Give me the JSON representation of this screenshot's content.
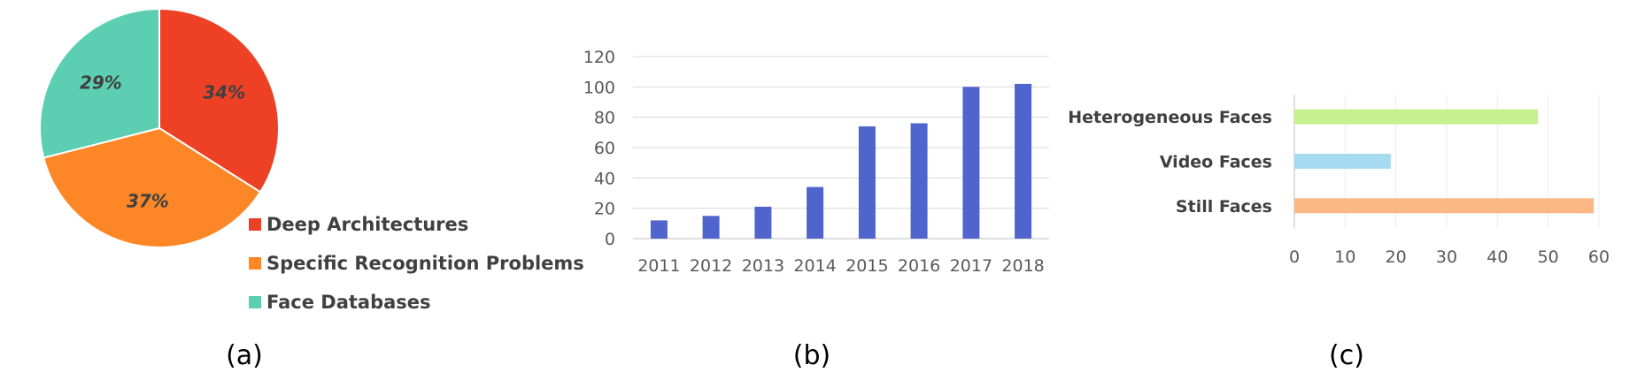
{
  "chart_data": [
    {
      "type": "pie",
      "panel_label": "(a)",
      "slices": [
        {
          "label": "Deep Architectures",
          "value": 34,
          "display": "34%",
          "color": "#ee4025"
        },
        {
          "label": "Specific Recognition Problems",
          "value": 37,
          "display": "37%",
          "color": "#fd8727"
        },
        {
          "label": "Face Databases",
          "value": 29,
          "display": "29%",
          "color": "#5ccfb2"
        }
      ],
      "legend_position": "bottom-right"
    },
    {
      "type": "bar",
      "panel_label": "(b)",
      "categories": [
        "2011",
        "2012",
        "2013",
        "2014",
        "2015",
        "2016",
        "2017",
        "2018"
      ],
      "values": [
        12,
        15,
        21,
        34,
        74,
        76,
        100,
        102
      ],
      "ylim": [
        0,
        120
      ],
      "yticks": [
        "0",
        "20",
        "40",
        "60",
        "80",
        "100",
        "120"
      ],
      "grid": true,
      "color": "#4f64cc"
    },
    {
      "type": "bar",
      "orientation": "horizontal",
      "panel_label": "(c)",
      "categories": [
        "Heterogeneous Faces",
        "Video Faces",
        "Still Faces"
      ],
      "values": [
        48,
        19,
        59
      ],
      "colors": [
        "#c5f18f",
        "#a4dbf1",
        "#fbb784"
      ],
      "xlim": [
        0,
        60
      ],
      "xticks": [
        "0",
        "10",
        "20",
        "30",
        "40",
        "50",
        "60"
      ],
      "grid": true
    }
  ]
}
